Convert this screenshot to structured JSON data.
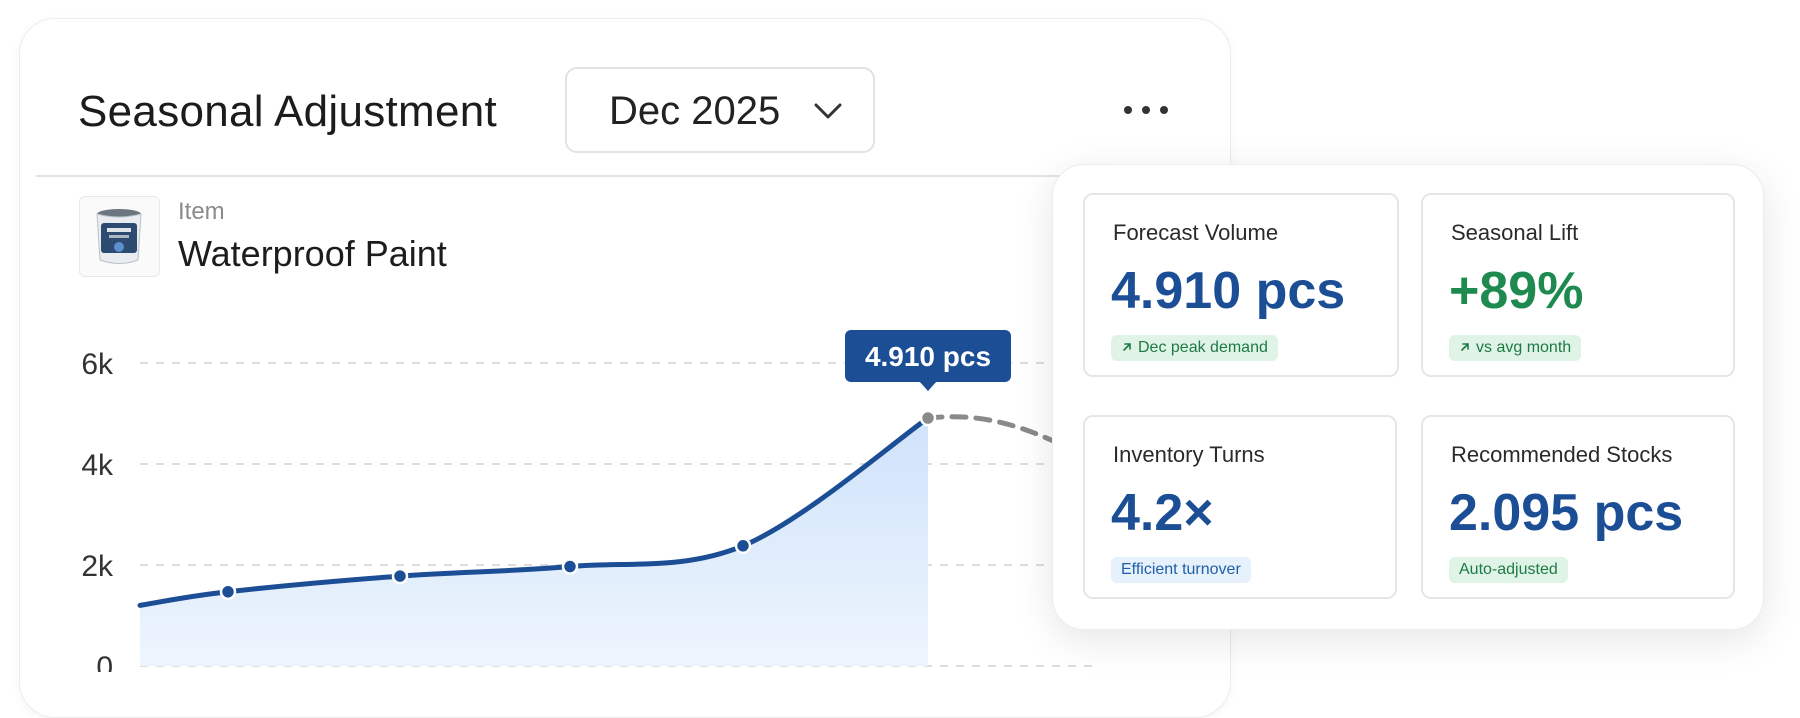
{
  "header": {
    "title": "Seasonal Adjustment",
    "month_select": {
      "value": "Dec 2025"
    },
    "more_label": "..."
  },
  "item": {
    "caption": "Item",
    "name": "Waterproof Paint"
  },
  "chart_data": {
    "type": "area",
    "y_ticks": [
      "6k",
      "4k",
      "2k",
      "0"
    ],
    "ylim": [
      0,
      6000
    ],
    "series": [
      {
        "values": [
          1200,
          1470,
          1780,
          1970,
          2380,
          4910
        ]
      }
    ],
    "forecast": [
      4910,
      4300
    ],
    "tooltip": "4.910 pcs",
    "grid": true
  },
  "kpis": [
    {
      "label": "Forecast Volume",
      "value": "4.910 pcs",
      "pill": "Dec peak demand",
      "pill_icon": "arrow-up-right-icon",
      "value_color": "#1c4e96",
      "pill_bg": "#dff3e7",
      "pill_color": "#1e7a45"
    },
    {
      "label": "Seasonal Lift",
      "value": "+89%",
      "pill": "vs avg month",
      "pill_icon": "arrow-up-right-icon",
      "value_color": "#1f8a4f",
      "pill_bg": "#dff3e7",
      "pill_color": "#1e7a45"
    },
    {
      "label": "Inventory Turns",
      "value": "4.2×",
      "pill": "Efficient turnover",
      "pill_icon": "",
      "value_color": "#1c4e96",
      "pill_bg": "#e6f1fb",
      "pill_color": "#1f5fa8"
    },
    {
      "label": "Recommended Stocks",
      "value": "2.095 pcs",
      "pill": "Auto-adjusted",
      "pill_icon": "",
      "value_color": "#1c4e96",
      "pill_bg": "#dff3e7",
      "pill_color": "#1e7a45"
    }
  ],
  "colors": {
    "accent": "#1c4e96",
    "area_top": "#cfe3fb",
    "area_bottom": "#eef5fd",
    "forecast": "#8a8a8a"
  }
}
